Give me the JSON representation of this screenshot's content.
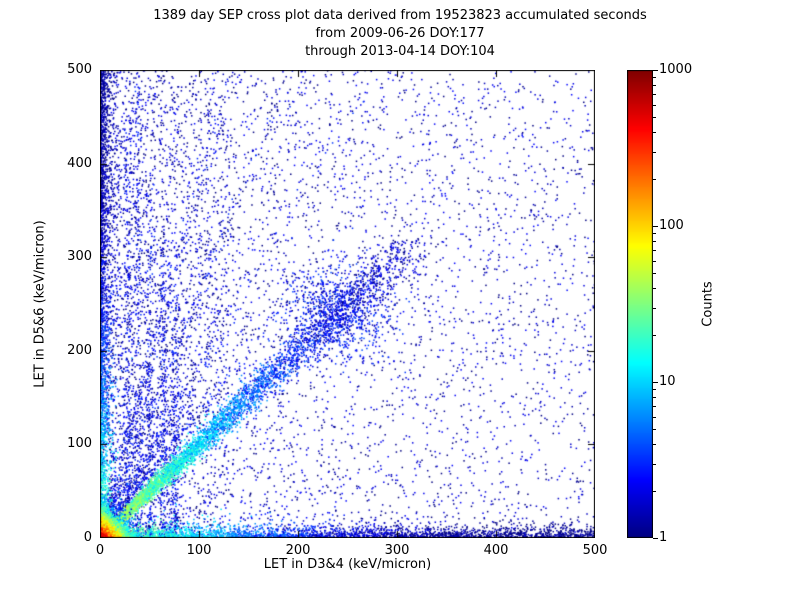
{
  "chart_data": {
    "type": "heatmap",
    "title": "1389 day SEP cross plot data derived from 19523823 accumulated seconds",
    "subtitle": [
      "from 2009-06-26 DOY:177",
      "through 2013-04-14 DOY:104"
    ],
    "xlabel": "LET in D3&4 (keV/micron)",
    "ylabel": "LET in D5&6 (keV/micron)",
    "xlim": [
      0,
      500
    ],
    "ylim": [
      0,
      500
    ],
    "xticks": [
      0,
      100,
      200,
      300,
      400,
      500
    ],
    "yticks": [
      0,
      100,
      200,
      300,
      400,
      500
    ],
    "grid": false,
    "background": "#ffffff",
    "colorbar": {
      "label": "Counts",
      "scale": "log",
      "min": 1,
      "max": 1000,
      "ticks": [
        1,
        10,
        100,
        1000
      ],
      "colormap": "jet",
      "position": "right"
    },
    "features": [
      {
        "kind": "diffuse",
        "name": "diffuse-scatter",
        "n": 5200,
        "x_bias": 1.7,
        "count": 1.6
      },
      {
        "kind": "diffuse_rect",
        "name": "upper-left-haze",
        "n": 1100,
        "x_max": 130,
        "y_max": 500,
        "count": 1.6
      },
      {
        "kind": "fan",
        "name": "origin-fan-rays",
        "slopes": [
          1.35,
          1.8,
          2.6,
          3.8
        ],
        "n_each": 330,
        "t_scale": 70,
        "t_max": 360,
        "width": 3,
        "count": 2.2
      },
      {
        "kind": "streaks",
        "name": "vertical-streaks",
        "xs": [
          28,
          38,
          50,
          64,
          76
        ],
        "y_maxes": [
          470,
          490,
          380,
          320,
          270
        ],
        "n_each": 240,
        "width": 2.2,
        "y_bias": 1.5,
        "count": 2.2
      },
      {
        "kind": "band_y",
        "name": "left-edge-band",
        "n": 2200,
        "x_mean": 4,
        "y_bias": 1.15,
        "count_near": 25,
        "count_falloff": 90
      },
      {
        "kind": "band_x",
        "name": "bottom-edge-band",
        "n": 3000,
        "y_mean": 5,
        "x_bias": 1.35,
        "count_near": 35,
        "count_falloff": 70
      },
      {
        "kind": "gauss_blob",
        "name": "diagonal-blob",
        "n": 800,
        "cx": 242,
        "cy": 240,
        "sigma": 26,
        "count": 2.5
      },
      {
        "kind": "ridge",
        "name": "main-diagonal-ridge",
        "n": 5200,
        "t_scale": 85,
        "t_max": 315,
        "uniform_frac": 0.25,
        "width_min": 1.5,
        "width_max": 13,
        "count_peak": 60,
        "count_falloff": 55
      },
      {
        "kind": "exp_blob",
        "name": "origin-hotspot",
        "n": 5200,
        "mean_x": 7,
        "mean_y": 7,
        "count_peak": 900,
        "count_falloff": 9
      }
    ]
  }
}
